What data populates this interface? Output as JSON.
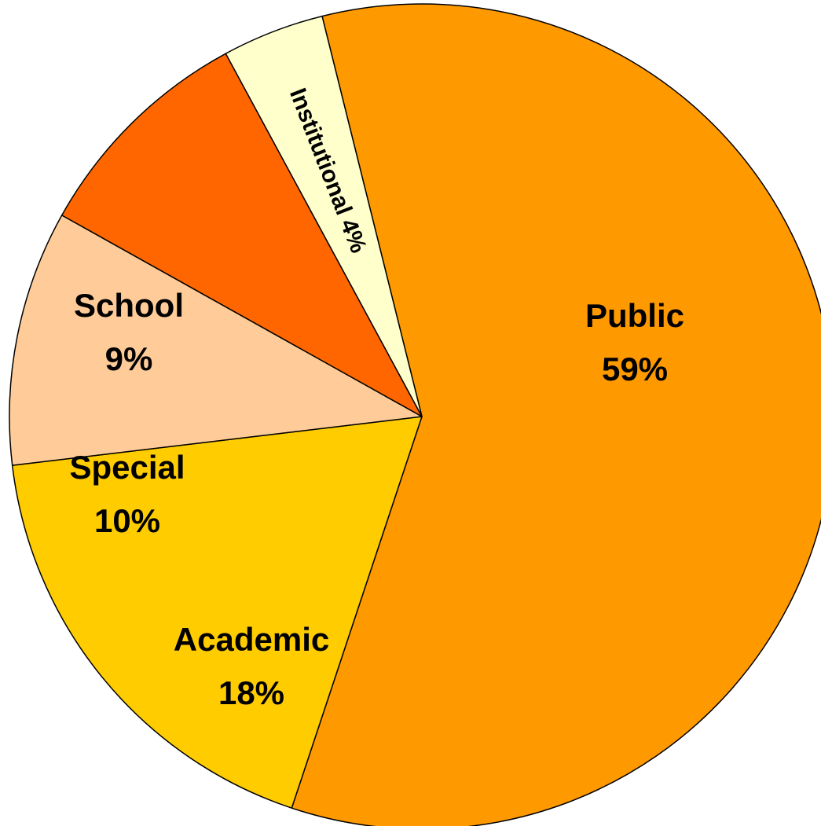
{
  "chart_data": {
    "type": "pie",
    "title": "",
    "start_angle_deg": -104,
    "direction": "clockwise",
    "legend": "none",
    "slices": [
      {
        "name": "Public",
        "value": 59,
        "label_line1": "Public",
        "label_line2": "59%",
        "color": "#FF9900"
      },
      {
        "name": "Academic",
        "value": 18,
        "label_line1": "Academic",
        "label_line2": "18%",
        "color": "#FFCC00"
      },
      {
        "name": "Special",
        "value": 10,
        "label_line1": "Special",
        "label_line2": "10%",
        "color": "#FFCC99"
      },
      {
        "name": "School",
        "value": 9,
        "label_line1": "School",
        "label_line2": "9%",
        "color": "#FF6600"
      },
      {
        "name": "Institutional",
        "value": 4,
        "label_line1": "Institutional 4%",
        "label_line2": "",
        "color": "#FFFFCC"
      }
    ]
  }
}
